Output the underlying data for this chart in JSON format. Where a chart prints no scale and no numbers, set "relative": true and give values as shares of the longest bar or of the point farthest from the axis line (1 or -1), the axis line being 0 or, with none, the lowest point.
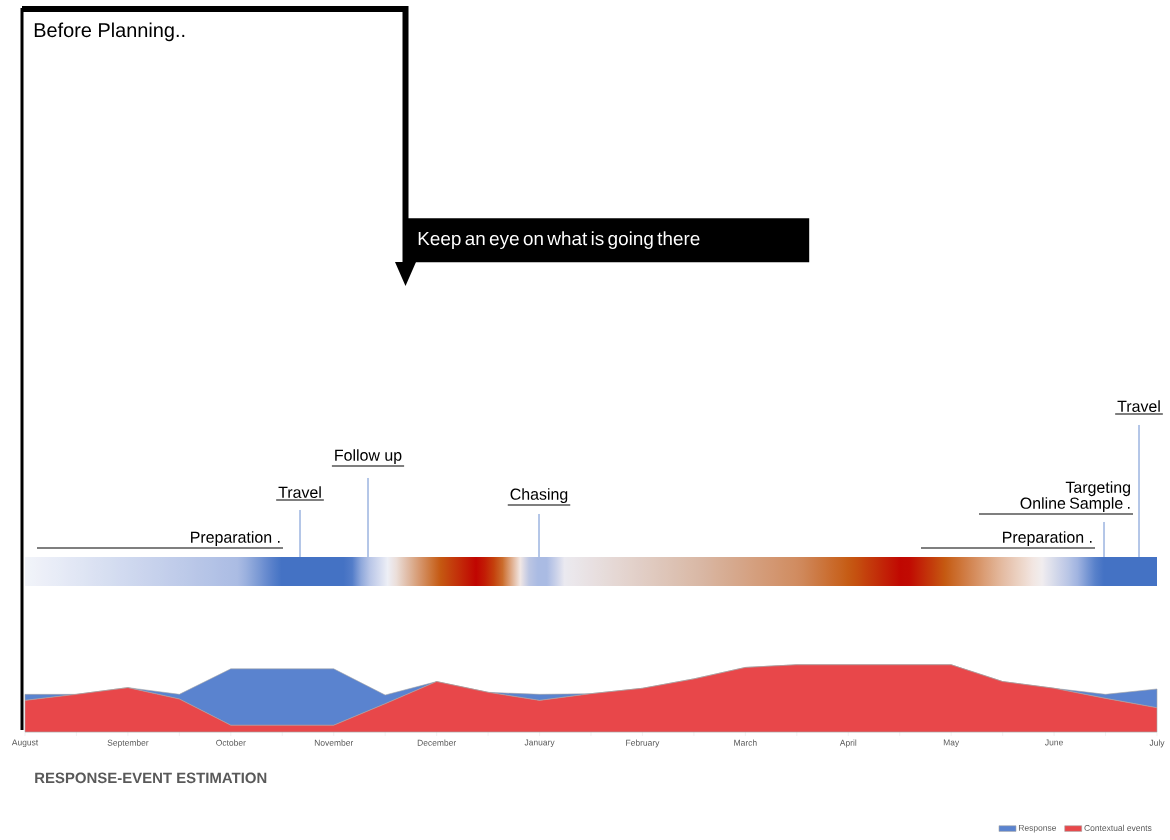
{
  "chart_data": {
    "type": "area",
    "title": "Before Planning..",
    "subtitle": "RESPONSE-EVENT ESTIMATION",
    "relative": true,
    "stacked": true,
    "legend": "bottom right",
    "categories": [
      "August",
      null,
      "September",
      null,
      "October",
      null,
      "November",
      null,
      "December",
      null,
      "January",
      null,
      "February",
      null,
      "March",
      null,
      "April",
      null,
      "May",
      null,
      "June",
      null,
      "July"
    ],
    "series": [
      {
        "name": "Contextual events",
        "color": "#e8474a",
        "values": [
          0.47,
          0.56,
          0.66,
          0.49,
          0.1,
          0.1,
          0.1,
          0.42,
          0.75,
          0.59,
          0.47,
          0.57,
          0.65,
          0.79,
          0.96,
          1,
          1,
          1,
          1,
          0.75,
          0.65,
          0.5,
          0.36
        ]
      },
      {
        "name": "Response",
        "color": "#5a83cf",
        "values": [
          0.09,
          0,
          0,
          0.07,
          0.84,
          0.84,
          0.84,
          0.13,
          0,
          0,
          0.09,
          0,
          0,
          0,
          0,
          0,
          0,
          0,
          0,
          0,
          0,
          0.06,
          0.28
        ]
      }
    ],
    "annotations": [
      "Preparation .",
      "Travel",
      "Follow up",
      "Chasing",
      "Targeting Online Sample .",
      "Preparation .",
      "Travel",
      "Keep an eye on what is going there"
    ]
  }
}
